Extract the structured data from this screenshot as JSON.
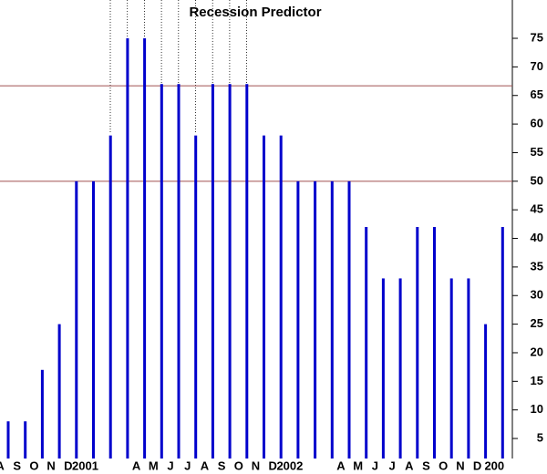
{
  "chart_data": {
    "type": "bar",
    "title": "Recession Predictor",
    "categories": [
      "A",
      "S",
      "O",
      "N",
      "D",
      "2001",
      null,
      null,
      "A",
      "M",
      "J",
      "J",
      "A",
      "S",
      "O",
      "N",
      "D",
      "2002",
      null,
      null,
      "A",
      "M",
      "J",
      "J",
      "A",
      "S",
      "O",
      "N",
      "D",
      "200"
    ],
    "values": [
      8,
      8,
      17,
      25,
      50,
      50,
      58,
      75,
      75,
      67,
      67,
      58,
      67,
      67,
      67,
      58,
      58,
      50,
      50,
      50,
      50,
      42,
      33,
      33,
      42,
      42,
      33,
      33,
      25,
      42
    ],
    "color": "#0000cc",
    "ylim": [
      1.5,
      81.7
    ],
    "yticks": [
      5,
      10,
      15,
      20,
      25,
      30,
      35,
      40,
      45,
      50,
      55,
      60,
      65,
      70,
      75
    ],
    "reference_lines": [
      66.7,
      50
    ],
    "reference_color": "#a05050"
  }
}
